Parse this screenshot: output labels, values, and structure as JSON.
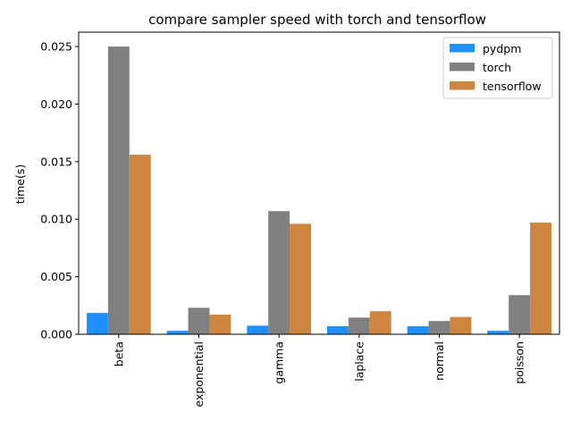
{
  "chart_data": {
    "type": "bar",
    "title": "compare sampler speed with torch and tensorflow",
    "xlabel": "",
    "ylabel": "time(s)",
    "categories": [
      "beta",
      "exponential",
      "gamma",
      "laplace",
      "normal",
      "poisson"
    ],
    "series": [
      {
        "name": "pydpm",
        "color": "#1e90ff",
        "values": [
          0.00185,
          0.0003,
          0.00075,
          0.0007,
          0.0007,
          0.0003
        ]
      },
      {
        "name": "torch",
        "color": "#808080",
        "values": [
          0.025,
          0.0023,
          0.0107,
          0.00145,
          0.00115,
          0.0034
        ]
      },
      {
        "name": "tensorflow",
        "color": "#cd853f",
        "values": [
          0.0156,
          0.0017,
          0.0096,
          0.002,
          0.0015,
          0.0097
        ]
      }
    ],
    "ylim": [
      0,
      0.02625
    ],
    "yticks": [
      "0.000",
      "0.005",
      "0.010",
      "0.015",
      "0.020",
      "0.025"
    ],
    "ytick_values": [
      0,
      0.005,
      0.01,
      0.015,
      0.02,
      0.025
    ],
    "legend_position": "top-right",
    "grid": false
  }
}
